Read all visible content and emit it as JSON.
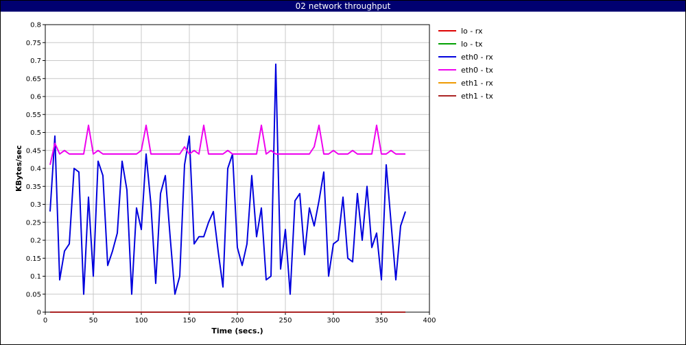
{
  "window": {
    "title": "02 network throughput"
  },
  "chart_data": {
    "type": "line",
    "title": "02 network throughput",
    "xlabel": "Time (secs.)",
    "ylabel": "KBytes/sec",
    "xlim": [
      0,
      400
    ],
    "ylim": [
      0,
      0.8
    ],
    "xticks": [
      0,
      50,
      100,
      150,
      200,
      250,
      300,
      350,
      400
    ],
    "yticks": [
      0,
      0.05,
      0.1,
      0.15,
      0.2,
      0.25,
      0.3,
      0.35,
      0.4,
      0.45,
      0.5,
      0.55,
      0.6,
      0.65,
      0.7,
      0.75,
      0.8
    ],
    "grid": true,
    "legend_position": "right",
    "x": [
      5,
      10,
      15,
      20,
      25,
      30,
      35,
      40,
      45,
      50,
      55,
      60,
      65,
      70,
      75,
      80,
      85,
      90,
      95,
      100,
      105,
      110,
      115,
      120,
      125,
      130,
      135,
      140,
      145,
      150,
      155,
      160,
      165,
      170,
      175,
      180,
      185,
      190,
      195,
      200,
      205,
      210,
      215,
      220,
      225,
      230,
      235,
      240,
      245,
      250,
      255,
      260,
      265,
      270,
      275,
      280,
      285,
      290,
      295,
      300,
      305,
      310,
      315,
      320,
      325,
      330,
      335,
      340,
      345,
      350,
      355,
      360,
      365,
      370,
      375
    ],
    "series": [
      {
        "name": "lo - rx",
        "color": "#dd0000",
        "values": [
          0,
          0,
          0,
          0,
          0,
          0,
          0,
          0,
          0,
          0,
          0,
          0,
          0,
          0,
          0,
          0,
          0,
          0,
          0,
          0,
          0,
          0,
          0,
          0,
          0,
          0,
          0,
          0,
          0,
          0,
          0,
          0,
          0,
          0,
          0,
          0,
          0,
          0,
          0,
          0,
          0,
          0,
          0,
          0,
          0,
          0,
          0,
          0,
          0,
          0,
          0,
          0,
          0,
          0,
          0,
          0,
          0,
          0,
          0,
          0,
          0,
          0,
          0,
          0,
          0,
          0,
          0,
          0,
          0,
          0,
          0,
          0,
          0,
          0,
          0
        ]
      },
      {
        "name": "lo - tx",
        "color": "#00a000",
        "values": [
          0,
          0,
          0,
          0,
          0,
          0,
          0,
          0,
          0,
          0,
          0,
          0,
          0,
          0,
          0,
          0,
          0,
          0,
          0,
          0,
          0,
          0,
          0,
          0,
          0,
          0,
          0,
          0,
          0,
          0,
          0,
          0,
          0,
          0,
          0,
          0,
          0,
          0,
          0,
          0,
          0,
          0,
          0,
          0,
          0,
          0,
          0,
          0,
          0,
          0,
          0,
          0,
          0,
          0,
          0,
          0,
          0,
          0,
          0,
          0,
          0,
          0,
          0,
          0,
          0,
          0,
          0,
          0,
          0,
          0,
          0,
          0,
          0,
          0,
          0
        ]
      },
      {
        "name": "eth0 - rx",
        "color": "#0000dd",
        "values": [
          0.28,
          0.49,
          0.09,
          0.17,
          0.19,
          0.4,
          0.39,
          0.05,
          0.32,
          0.1,
          0.42,
          0.38,
          0.13,
          0.17,
          0.22,
          0.42,
          0.34,
          0.05,
          0.29,
          0.23,
          0.44,
          0.3,
          0.08,
          0.33,
          0.38,
          0.21,
          0.05,
          0.1,
          0.41,
          0.49,
          0.19,
          0.21,
          0.21,
          0.25,
          0.28,
          0.17,
          0.07,
          0.4,
          0.44,
          0.18,
          0.13,
          0.19,
          0.38,
          0.21,
          0.29,
          0.09,
          0.1,
          0.69,
          0.12,
          0.23,
          0.05,
          0.31,
          0.33,
          0.16,
          0.29,
          0.24,
          0.31,
          0.39,
          0.1,
          0.19,
          0.2,
          0.32,
          0.15,
          0.14,
          0.33,
          0.2,
          0.35,
          0.18,
          0.22,
          0.09,
          0.41,
          0.25,
          0.09,
          0.24,
          0.28
        ]
      },
      {
        "name": "eth0 - tx",
        "color": "#ee00ee",
        "values": [
          0.41,
          0.47,
          0.44,
          0.45,
          0.44,
          0.44,
          0.44,
          0.44,
          0.52,
          0.44,
          0.45,
          0.44,
          0.44,
          0.44,
          0.44,
          0.44,
          0.44,
          0.44,
          0.44,
          0.45,
          0.52,
          0.44,
          0.44,
          0.44,
          0.44,
          0.44,
          0.44,
          0.44,
          0.46,
          0.44,
          0.45,
          0.44,
          0.52,
          0.44,
          0.44,
          0.44,
          0.44,
          0.45,
          0.44,
          0.44,
          0.44,
          0.44,
          0.44,
          0.44,
          0.52,
          0.44,
          0.45,
          0.44,
          0.44,
          0.44,
          0.44,
          0.44,
          0.44,
          0.44,
          0.44,
          0.46,
          0.52,
          0.44,
          0.44,
          0.45,
          0.44,
          0.44,
          0.44,
          0.45,
          0.44,
          0.44,
          0.44,
          0.44,
          0.52,
          0.44,
          0.44,
          0.45,
          0.44,
          0.44,
          0.44
        ]
      },
      {
        "name": "eth1 - rx",
        "color": "#ee9900",
        "values": [
          0,
          0,
          0,
          0,
          0,
          0,
          0,
          0,
          0,
          0,
          0,
          0,
          0,
          0,
          0,
          0,
          0,
          0,
          0,
          0,
          0,
          0,
          0,
          0,
          0,
          0,
          0,
          0,
          0,
          0,
          0,
          0,
          0,
          0,
          0,
          0,
          0,
          0,
          0,
          0,
          0,
          0,
          0,
          0,
          0,
          0,
          0,
          0,
          0,
          0,
          0,
          0,
          0,
          0,
          0,
          0,
          0,
          0,
          0,
          0,
          0,
          0,
          0,
          0,
          0,
          0,
          0,
          0,
          0,
          0,
          0,
          0,
          0,
          0,
          0
        ]
      },
      {
        "name": "eth1 - tx",
        "color": "#aa2222",
        "values": [
          0,
          0,
          0,
          0,
          0,
          0,
          0,
          0,
          0,
          0,
          0,
          0,
          0,
          0,
          0,
          0,
          0,
          0,
          0,
          0,
          0,
          0,
          0,
          0,
          0,
          0,
          0,
          0,
          0,
          0,
          0,
          0,
          0,
          0,
          0,
          0,
          0,
          0,
          0,
          0,
          0,
          0,
          0,
          0,
          0,
          0,
          0,
          0,
          0,
          0,
          0,
          0,
          0,
          0,
          0,
          0,
          0,
          0,
          0,
          0,
          0,
          0,
          0,
          0,
          0,
          0,
          0,
          0,
          0,
          0,
          0,
          0,
          0,
          0,
          0
        ]
      }
    ]
  }
}
